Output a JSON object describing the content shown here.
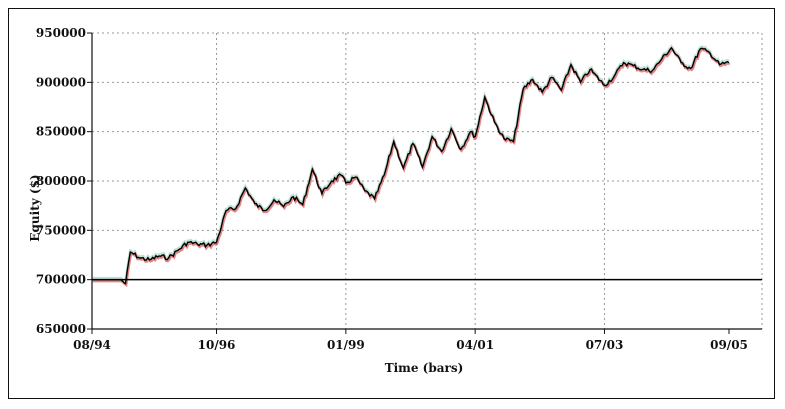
{
  "chart_data": {
    "type": "line",
    "title": "",
    "xlabel": "Time (bars)",
    "ylabel": "Equity ($)",
    "ylim": [
      650000,
      950000
    ],
    "yticks": [
      650000,
      700000,
      750000,
      800000,
      850000,
      900000,
      950000
    ],
    "ytick_labels": [
      "650000",
      "700000",
      "750000",
      "800000",
      "850000",
      "900000",
      "950000"
    ],
    "xticks": [
      "08/94",
      "10/96",
      "01/99",
      "04/01",
      "07/03",
      "09/05"
    ],
    "xlim": [
      "08/94",
      "09/05"
    ],
    "grid": true,
    "baseline": 700000,
    "colors": {
      "series": "#000000",
      "down_shade": "#cc2222",
      "up_shade": "#44aa88",
      "grid": "#999999",
      "baseline": "#000000"
    },
    "series": [
      {
        "x": [
          "08/94",
          "02/95",
          "03/95",
          "04/95",
          "06/95",
          "08/95",
          "10/95",
          "12/95",
          "02/96",
          "04/96",
          "06/96",
          "08/96",
          "10/96",
          "12/96",
          "02/97",
          "04/97",
          "06/97",
          "08/97",
          "10/97",
          "12/97",
          "02/98",
          "04/98",
          "06/98",
          "08/98",
          "10/98",
          "12/98",
          "01/99",
          "03/99",
          "05/99",
          "07/99",
          "09/99",
          "11/99",
          "01/00",
          "03/00",
          "05/00",
          "07/00",
          "09/00",
          "11/00",
          "01/01",
          "03/01",
          "04/01",
          "06/01",
          "08/01",
          "10/01",
          "12/01",
          "02/02",
          "04/02",
          "06/02",
          "08/02",
          "10/02",
          "12/02",
          "02/03",
          "04/03",
          "07/03",
          "09/03",
          "11/03",
          "01/04",
          "03/04",
          "05/04",
          "07/04",
          "09/04",
          "11/04",
          "01/05",
          "03/05",
          "05/05",
          "07/05",
          "09/05"
        ],
        "values": [
          700000,
          700000,
          696000,
          728000,
          722000,
          720000,
          724000,
          722000,
          730000,
          738000,
          736000,
          735000,
          738000,
          770000,
          772000,
          793000,
          777000,
          770000,
          781000,
          774000,
          784000,
          776000,
          812000,
          787000,
          800000,
          806000,
          798000,
          804000,
          790000,
          782000,
          806000,
          840000,
          813000,
          838000,
          814000,
          845000,
          830000,
          853000,
          832000,
          850000,
          845000,
          885000,
          860000,
          843000,
          840000,
          893000,
          903000,
          890000,
          905000,
          892000,
          918000,
          900000,
          913000,
          897000,
          906000,
          920000,
          917000,
          913000,
          912000,
          924000,
          935000,
          920000,
          914000,
          934000,
          930000,
          918000,
          920000
        ]
      }
    ]
  }
}
